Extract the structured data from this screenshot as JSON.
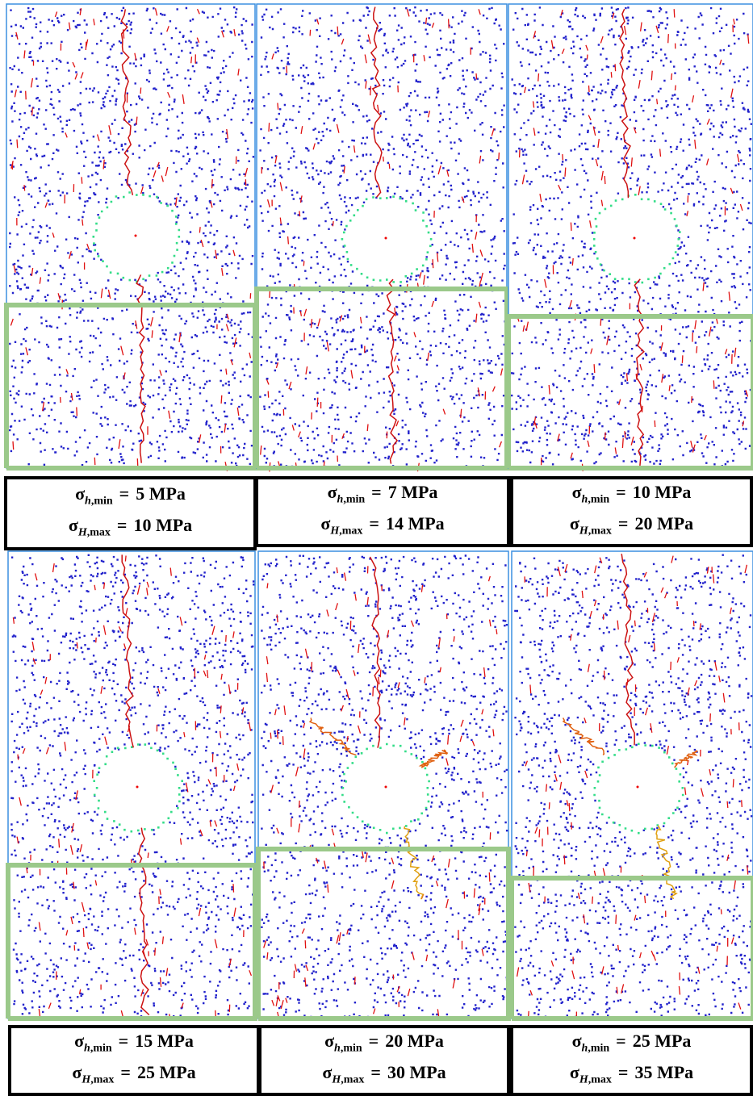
{
  "panels": [
    {
      "lines": [
        {
          "symbol": "σ",
          "sub_var": "h",
          "sub_rest": ",min",
          "eq": "=",
          "value": "5 MPa"
        },
        {
          "symbol": "σ",
          "sub_var": "H",
          "sub_rest": ",max",
          "eq": "=",
          "value": "10 MPa"
        }
      ]
    },
    {
      "lines": [
        {
          "symbol": "σ",
          "sub_var": "h",
          "sub_rest": ",min",
          "eq": "=",
          "value": "7 MPa"
        },
        {
          "symbol": "σ",
          "sub_var": "H",
          "sub_rest": ",max",
          "eq": "=",
          "value": "14 MPa"
        }
      ]
    },
    {
      "lines": [
        {
          "symbol": "σ",
          "sub_var": "h",
          "sub_rest": ",min",
          "eq": "=",
          "value": "10 MPa"
        },
        {
          "symbol": "σ",
          "sub_var": "H",
          "sub_rest": ",max",
          "eq": "=",
          "value": "20 MPa"
        }
      ]
    },
    {
      "lines": [
        {
          "symbol": "σ",
          "sub_var": "h",
          "sub_rest": ",min",
          "eq": "=",
          "value": "15 MPa"
        },
        {
          "symbol": "σ",
          "sub_var": "H",
          "sub_rest": ",max",
          "eq": "=",
          "value": "25 MPa"
        }
      ]
    },
    {
      "lines": [
        {
          "symbol": "σ",
          "sub_var": "h",
          "sub_rest": ",min",
          "eq": "=",
          "value": "20 MPa"
        },
        {
          "symbol": "σ",
          "sub_var": "H",
          "sub_rest": ",max",
          "eq": "=",
          "value": "30 MPa"
        }
      ]
    },
    {
      "lines": [
        {
          "symbol": "σ",
          "sub_var": "h",
          "sub_rest": ",min",
          "eq": "=",
          "value": "25 MPa"
        },
        {
          "symbol": "σ",
          "sub_var": "H",
          "sub_rest": ",max",
          "eq": "=",
          "value": "35 MPa"
        }
      ]
    }
  ]
}
